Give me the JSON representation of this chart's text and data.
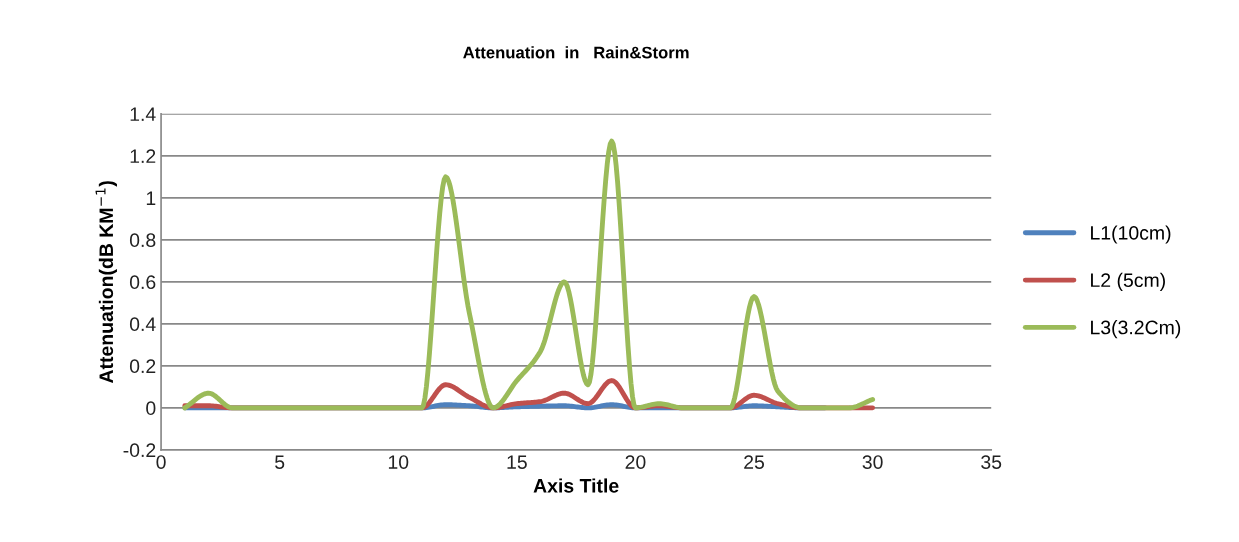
{
  "chart_data": {
    "type": "line",
    "title": "Attenuation  in   Rain&Storm",
    "xlabel": "Axis Title",
    "ylabel": "Attenuation(dB KM$^{−1}$)",
    "x": [
      1,
      2,
      3,
      4,
      5,
      6,
      7,
      8,
      9,
      10,
      11,
      12,
      13,
      14,
      15,
      16,
      17,
      18,
      19,
      20,
      21,
      22,
      23,
      24,
      25,
      26,
      27,
      28,
      29,
      30
    ],
    "series": [
      {
        "name": "L1(10cm)",
        "color": "#4f81bd",
        "values": [
          0,
          0,
          0,
          0,
          0,
          0,
          0,
          0,
          0,
          0,
          0,
          0.015,
          0.01,
          0,
          0.005,
          0.008,
          0.01,
          0,
          0.015,
          0,
          0,
          0,
          0,
          0,
          0.01,
          0.005,
          0,
          0,
          null,
          null
        ]
      },
      {
        "name": "L2 (5cm)",
        "color": "#c0504d",
        "values": [
          0.01,
          0.01,
          0,
          0,
          0,
          0,
          0,
          0,
          0,
          0,
          0,
          0.11,
          0.05,
          0,
          0.02,
          0.03,
          0.07,
          0.02,
          0.13,
          0,
          0.01,
          0,
          0,
          0,
          0.06,
          0.02,
          0,
          0,
          0,
          0
        ]
      },
      {
        "name": "L3(3.2Cm)",
        "color": "#9bbb59",
        "values": [
          0,
          0.07,
          0,
          0,
          0,
          0,
          0,
          0,
          0,
          0,
          0,
          1.1,
          0.45,
          0,
          0.13,
          0.27,
          0.6,
          0.11,
          1.27,
          0,
          0.02,
          0,
          0,
          0,
          0.53,
          0.08,
          0,
          0,
          0,
          0.04
        ]
      }
    ],
    "xlim": [
      0,
      35
    ],
    "xticks": [
      0,
      5,
      10,
      15,
      20,
      25,
      30,
      35
    ],
    "ylim": [
      -0.2,
      1.4
    ],
    "yticks": [
      -0.2,
      0,
      0.2,
      0.4,
      0.6,
      0.8,
      1,
      1.2,
      1.4
    ],
    "grid": "y",
    "legend": "right",
    "marker": "none",
    "line_style": "solid"
  }
}
